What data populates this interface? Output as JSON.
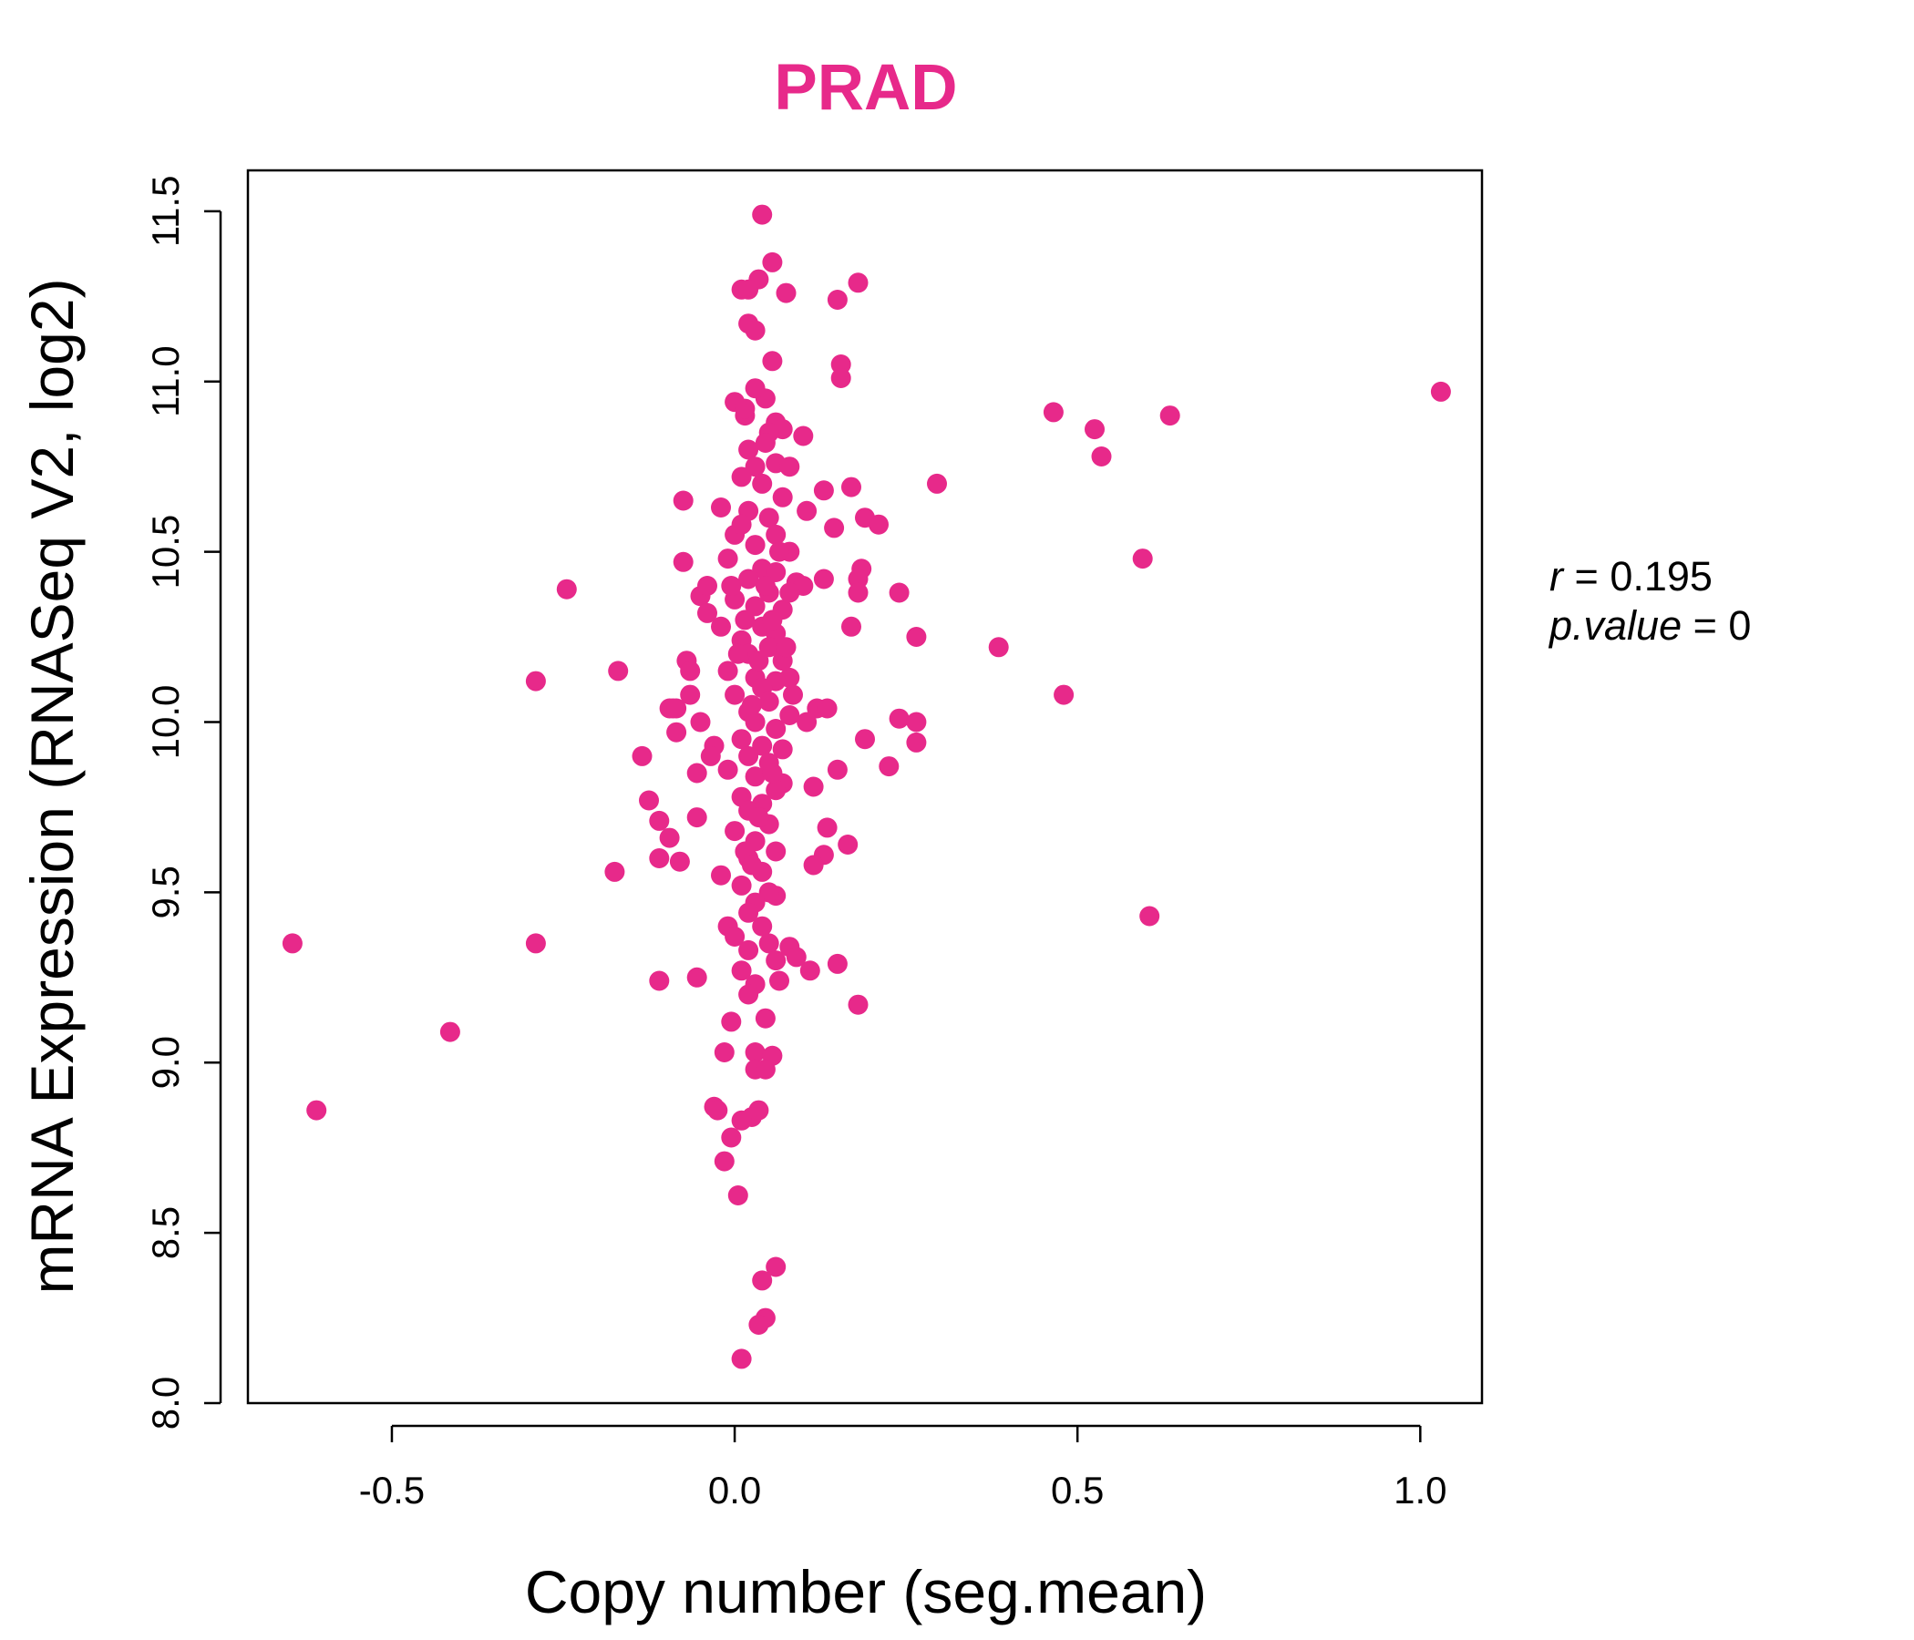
{
  "colors": {
    "point": "#E7298A",
    "title": "#E7298A",
    "axis": "#000000"
  },
  "chart_data": {
    "type": "scatter",
    "title": "PRAD",
    "xlabel": "Copy number (seg.mean)",
    "ylabel": "mRNA Expression (RNASeq V2, log2)",
    "xlim": [
      -0.71,
      1.09
    ],
    "ylim": [
      8.0,
      11.62
    ],
    "xticks": [
      -0.5,
      0.0,
      0.5,
      1.0
    ],
    "xtick_labels": [
      "-0.5",
      "0.0",
      "0.5",
      "1.0"
    ],
    "yticks": [
      8.0,
      8.5,
      9.0,
      9.5,
      10.0,
      10.5,
      11.0,
      11.5
    ],
    "ytick_labels": [
      "8.0",
      "8.5",
      "9.0",
      "9.5",
      "10.0",
      "10.5",
      "11.0",
      "11.5"
    ],
    "grid": false,
    "stats": {
      "r_label": "r",
      "r_value": "0.195",
      "p_label": "p.value",
      "p_value": "0"
    },
    "points": [
      [
        0.04,
        11.49
      ],
      [
        0.055,
        11.35
      ],
      [
        0.035,
        11.3
      ],
      [
        0.01,
        11.27
      ],
      [
        0.02,
        11.27
      ],
      [
        0.075,
        11.26
      ],
      [
        0.18,
        11.29
      ],
      [
        0.15,
        11.24
      ],
      [
        0.02,
        11.17
      ],
      [
        0.03,
        11.15
      ],
      [
        0.055,
        11.06
      ],
      [
        0.155,
        11.05
      ],
      [
        0.155,
        11.01
      ],
      [
        1.03,
        10.97
      ],
      [
        0.465,
        10.91
      ],
      [
        0.635,
        10.9
      ],
      [
        0.525,
        10.86
      ],
      [
        0.535,
        10.78
      ],
      [
        0.1,
        10.84
      ],
      [
        0.295,
        10.7
      ],
      [
        0.0,
        10.94
      ],
      [
        0.015,
        10.9
      ],
      [
        0.045,
        10.95
      ],
      [
        0.06,
        10.88
      ],
      [
        0.07,
        10.86
      ],
      [
        -0.075,
        10.65
      ],
      [
        0.17,
        10.69
      ],
      [
        0.13,
        10.68
      ],
      [
        0.19,
        10.6
      ],
      [
        0.21,
        10.58
      ],
      [
        0.145,
        10.57
      ],
      [
        0.105,
        10.62
      ],
      [
        0.595,
        10.48
      ],
      [
        -0.075,
        10.47
      ],
      [
        0.185,
        10.45
      ],
      [
        0.18,
        10.42
      ],
      [
        0.18,
        10.38
      ],
      [
        0.24,
        10.38
      ],
      [
        0.13,
        10.42
      ],
      [
        -0.245,
        10.39
      ],
      [
        -0.05,
        10.37
      ],
      [
        -0.04,
        10.4
      ],
      [
        -0.04,
        10.32
      ],
      [
        0.17,
        10.28
      ],
      [
        0.265,
        10.25
      ],
      [
        0.385,
        10.22
      ],
      [
        -0.07,
        10.18
      ],
      [
        -0.065,
        10.15
      ],
      [
        -0.17,
        10.15
      ],
      [
        -0.29,
        10.12
      ],
      [
        0.08,
        10.13
      ],
      [
        0.48,
        10.08
      ],
      [
        -0.065,
        10.08
      ],
      [
        -0.09,
        10.04
      ],
      [
        -0.095,
        10.04
      ],
      [
        -0.085,
        10.04
      ],
      [
        -0.05,
        10.0
      ],
      [
        0.12,
        10.04
      ],
      [
        0.135,
        10.04
      ],
      [
        0.105,
        10.0
      ],
      [
        0.24,
        10.01
      ],
      [
        0.265,
        10.0
      ],
      [
        0.265,
        9.94
      ],
      [
        0.19,
        9.95
      ],
      [
        -0.085,
        9.97
      ],
      [
        -0.03,
        9.93
      ],
      [
        -0.035,
        9.9
      ],
      [
        -0.135,
        9.9
      ],
      [
        -0.055,
        9.85
      ],
      [
        0.225,
        9.87
      ],
      [
        0.15,
        9.86
      ],
      [
        0.115,
        9.81
      ],
      [
        0.07,
        9.82
      ],
      [
        -0.125,
        9.77
      ],
      [
        -0.11,
        9.71
      ],
      [
        -0.055,
        9.72
      ],
      [
        -0.095,
        9.66
      ],
      [
        -0.11,
        9.6
      ],
      [
        -0.08,
        9.59
      ],
      [
        0.135,
        9.69
      ],
      [
        0.165,
        9.64
      ],
      [
        0.13,
        9.61
      ],
      [
        0.115,
        9.58
      ],
      [
        -0.175,
        9.56
      ],
      [
        -0.02,
        9.55
      ],
      [
        0.06,
        9.49
      ],
      [
        0.605,
        9.43
      ],
      [
        -0.645,
        9.35
      ],
      [
        -0.29,
        9.35
      ],
      [
        -0.01,
        9.4
      ],
      [
        0.08,
        9.34
      ],
      [
        0.09,
        9.31
      ],
      [
        0.15,
        9.29
      ],
      [
        0.11,
        9.27
      ],
      [
        -0.11,
        9.24
      ],
      [
        -0.055,
        9.25
      ],
      [
        0.065,
        9.24
      ],
      [
        0.18,
        9.17
      ],
      [
        0.045,
        9.13
      ],
      [
        -0.005,
        9.12
      ],
      [
        -0.415,
        9.09
      ],
      [
        -0.015,
        9.03
      ],
      [
        0.03,
        9.03
      ],
      [
        0.055,
        9.02
      ],
      [
        0.03,
        8.98
      ],
      [
        0.045,
        8.98
      ],
      [
        -0.61,
        8.86
      ],
      [
        -0.03,
        8.87
      ],
      [
        -0.025,
        8.86
      ],
      [
        0.035,
        8.86
      ],
      [
        0.025,
        8.84
      ],
      [
        0.01,
        8.83
      ],
      [
        -0.005,
        8.78
      ],
      [
        -0.015,
        8.71
      ],
      [
        0.005,
        8.61
      ],
      [
        0.06,
        8.4
      ],
      [
        0.04,
        8.36
      ],
      [
        0.045,
        8.25
      ],
      [
        0.035,
        8.23
      ],
      [
        0.01,
        8.13
      ],
      [
        0.03,
        10.98
      ],
      [
        0.02,
        10.8
      ],
      [
        0.05,
        10.85
      ],
      [
        0.03,
        10.75
      ],
      [
        0.06,
        10.76
      ],
      [
        0.08,
        10.75
      ],
      [
        0.01,
        10.72
      ],
      [
        0.04,
        10.7
      ],
      [
        0.07,
        10.66
      ],
      [
        0.02,
        10.62
      ],
      [
        0.05,
        10.6
      ],
      [
        -0.02,
        10.63
      ],
      [
        0.0,
        10.55
      ],
      [
        0.06,
        10.55
      ],
      [
        0.03,
        10.52
      ],
      [
        0.08,
        10.5
      ],
      [
        -0.01,
        10.48
      ],
      [
        0.04,
        10.45
      ],
      [
        0.06,
        10.44
      ],
      [
        0.02,
        10.42
      ],
      [
        0.09,
        10.41
      ],
      [
        0.1,
        10.4
      ],
      [
        0.05,
        10.38
      ],
      [
        0.0,
        10.36
      ],
      [
        0.03,
        10.34
      ],
      [
        0.07,
        10.33
      ],
      [
        0.08,
        10.38
      ],
      [
        -0.02,
        10.28
      ],
      [
        0.04,
        10.28
      ],
      [
        0.06,
        10.26
      ],
      [
        0.01,
        10.24
      ],
      [
        0.05,
        10.22
      ],
      [
        0.02,
        10.2
      ],
      [
        0.07,
        10.18
      ],
      [
        -0.01,
        10.15
      ],
      [
        0.03,
        10.13
      ],
      [
        0.06,
        10.12
      ],
      [
        0.04,
        10.1
      ],
      [
        0.0,
        10.08
      ],
      [
        0.05,
        10.06
      ],
      [
        0.02,
        10.03
      ],
      [
        0.08,
        10.02
      ],
      [
        0.03,
        10.0
      ],
      [
        0.06,
        9.98
      ],
      [
        0.01,
        9.95
      ],
      [
        0.04,
        9.93
      ],
      [
        0.07,
        9.92
      ],
      [
        0.02,
        9.9
      ],
      [
        0.05,
        9.88
      ],
      [
        -0.01,
        9.86
      ],
      [
        0.03,
        9.84
      ],
      [
        0.06,
        9.8
      ],
      [
        0.01,
        9.78
      ],
      [
        0.04,
        9.76
      ],
      [
        0.02,
        9.74
      ],
      [
        0.05,
        9.7
      ],
      [
        0.0,
        9.68
      ],
      [
        0.03,
        9.65
      ],
      [
        0.06,
        9.62
      ],
      [
        0.02,
        9.6
      ],
      [
        0.04,
        9.56
      ],
      [
        0.01,
        9.52
      ],
      [
        0.05,
        9.5
      ],
      [
        0.03,
        9.47
      ],
      [
        0.02,
        9.44
      ],
      [
        0.04,
        9.4
      ],
      [
        0.0,
        9.37
      ],
      [
        0.05,
        9.35
      ],
      [
        0.02,
        9.33
      ],
      [
        0.06,
        9.3
      ],
      [
        0.01,
        9.27
      ],
      [
        0.03,
        9.23
      ],
      [
        0.02,
        9.2
      ],
      [
        0.01,
        10.58
      ],
      [
        0.045,
        10.4
      ],
      [
        0.015,
        10.3
      ],
      [
        0.035,
        10.18
      ],
      [
        0.025,
        10.05
      ],
      [
        0.055,
        9.85
      ],
      [
        0.015,
        9.62
      ],
      [
        0.065,
        10.5
      ],
      [
        0.075,
        10.22
      ],
      [
        0.085,
        10.08
      ],
      [
        0.015,
        10.92
      ],
      [
        0.045,
        10.82
      ],
      [
        -0.005,
        10.4
      ],
      [
        0.005,
        10.2
      ],
      [
        0.055,
        10.3
      ],
      [
        0.025,
        9.58
      ],
      [
        0.035,
        9.72
      ]
    ]
  }
}
